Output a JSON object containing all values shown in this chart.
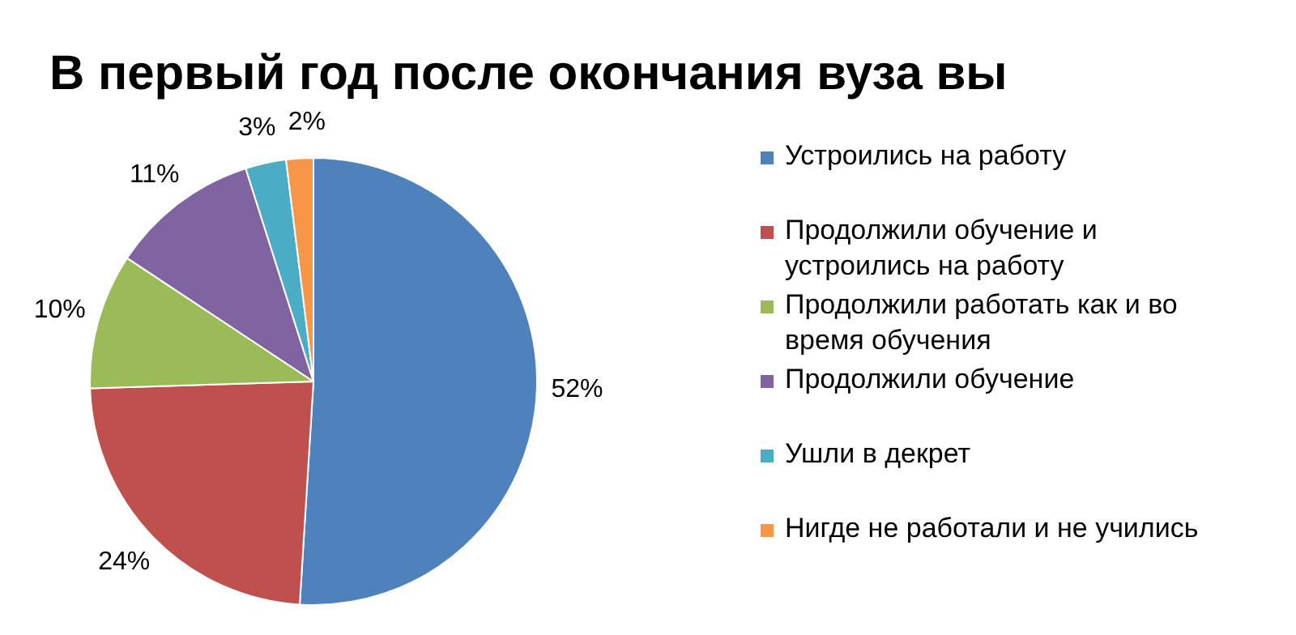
{
  "chart_data": {
    "type": "pie",
    "title": "В первый год после окончания вуза вы",
    "categories": [
      "Устроились на работу",
      "Продолжили обучение и устроились на работу",
      "Продолжили работать как и во время обучения",
      "Продолжили обучение",
      "Ушли в декрет",
      "Нигде не работали и не учились"
    ],
    "values": [
      52,
      24,
      10,
      11,
      3,
      2
    ],
    "colors": [
      "#4f81bd",
      "#c0504d",
      "#9bbb59",
      "#8064a2",
      "#4bacc6",
      "#f79646"
    ],
    "value_labels": [
      "52%",
      "24%",
      "10%",
      "11%",
      "3%",
      "2%"
    ],
    "legend": "right"
  }
}
